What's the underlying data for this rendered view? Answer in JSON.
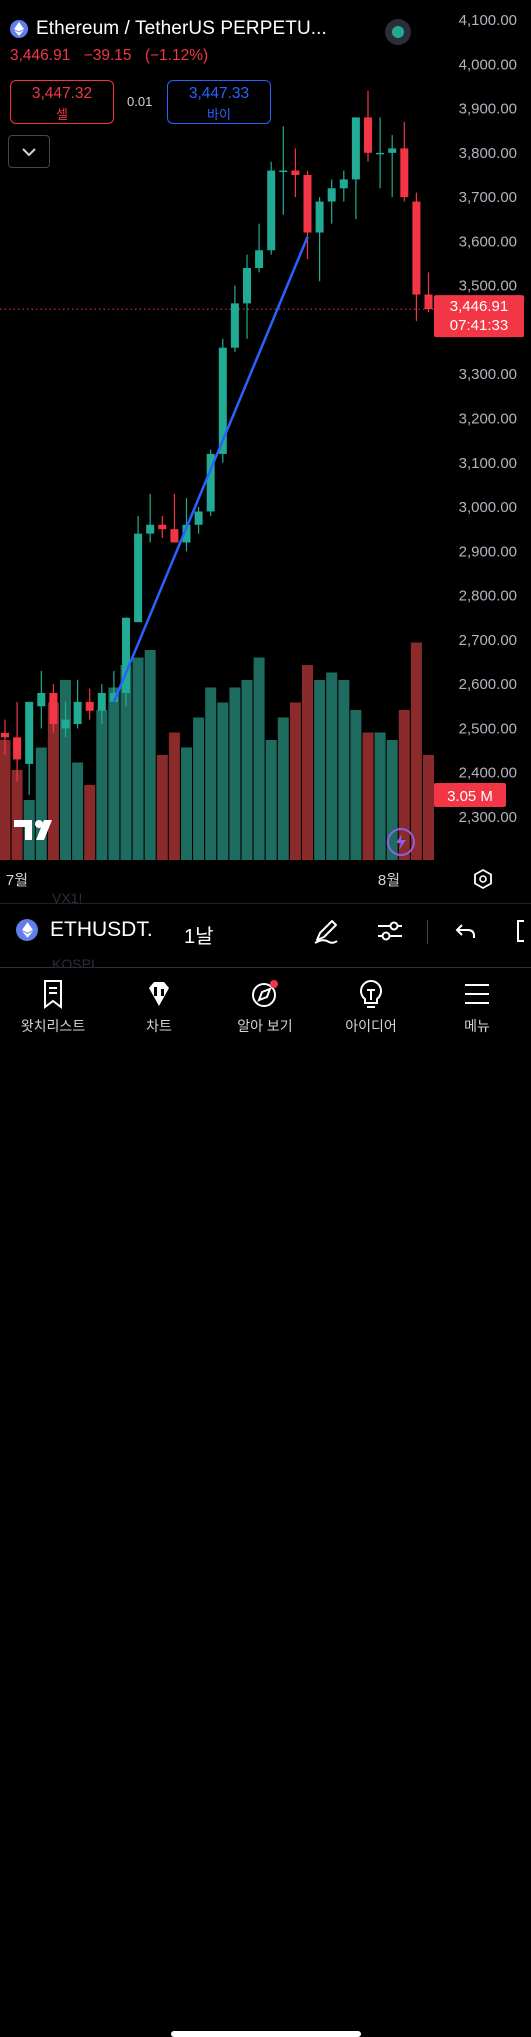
{
  "header": {
    "title": "Ethereum / TetherUS PERPETU...",
    "last_price": "3,446.91",
    "change": "−39.15",
    "change_pct": "(−1.12%)"
  },
  "order": {
    "sell_price": "3,447.32",
    "sell_label": "셀",
    "spread": "0.01",
    "buy_price": "3,447.33",
    "buy_label": "바이"
  },
  "colors": {
    "up": "#22ab94",
    "down": "#f23645",
    "vol_up": "#1e6b5f",
    "vol_down": "#8a2a2a",
    "trendline": "#2962ff",
    "background": "#000000"
  },
  "chart_data": {
    "type": "candlestick",
    "y_axis_labels": [
      "4,100.00",
      "4,000.00",
      "3,900.00",
      "3,800.00",
      "3,700.00",
      "3,600.00",
      "3,500.00",
      "3,400.00",
      "3,300.00",
      "3,200.00",
      "3,100.00",
      "3,000.00",
      "2,900.00",
      "2,800.00",
      "2,700.00",
      "2,600.00",
      "2,500.00",
      "2,400.00",
      "2,300.00"
    ],
    "y_range": [
      2220,
      4120
    ],
    "x_labels": [
      "7월",
      "8월"
    ],
    "current_price_label": "3,446.91",
    "countdown_label": "07:41:33",
    "current_price": 3446.91,
    "volume_label": "3.05 M",
    "candles": [
      {
        "o": 2490,
        "h": 2520,
        "l": 2440,
        "c": 2480
      },
      {
        "o": 2480,
        "h": 2560,
        "l": 2380,
        "c": 2430
      },
      {
        "o": 2420,
        "h": 2560,
        "l": 2350,
        "c": 2560
      },
      {
        "o": 2550,
        "h": 2630,
        "l": 2500,
        "c": 2580
      },
      {
        "o": 2580,
        "h": 2600,
        "l": 2490,
        "c": 2510
      },
      {
        "o": 2500,
        "h": 2560,
        "l": 2480,
        "c": 2520
      },
      {
        "o": 2510,
        "h": 2610,
        "l": 2500,
        "c": 2560
      },
      {
        "o": 2560,
        "h": 2590,
        "l": 2520,
        "c": 2540
      },
      {
        "o": 2540,
        "h": 2600,
        "l": 2510,
        "c": 2580
      },
      {
        "o": 2560,
        "h": 2630,
        "l": 2560,
        "c": 2580
      },
      {
        "o": 2580,
        "h": 2750,
        "l": 2550,
        "c": 2750
      },
      {
        "o": 2740,
        "h": 2980,
        "l": 2740,
        "c": 2940
      },
      {
        "o": 2940,
        "h": 3030,
        "l": 2920,
        "c": 2960
      },
      {
        "o": 2960,
        "h": 2980,
        "l": 2930,
        "c": 2950
      },
      {
        "o": 2950,
        "h": 3030,
        "l": 2920,
        "c": 2920
      },
      {
        "o": 2920,
        "h": 3020,
        "l": 2900,
        "c": 2960
      },
      {
        "o": 2960,
        "h": 3000,
        "l": 2940,
        "c": 2990
      },
      {
        "o": 2990,
        "h": 3130,
        "l": 2980,
        "c": 3120
      },
      {
        "o": 3120,
        "h": 3380,
        "l": 3100,
        "c": 3360
      },
      {
        "o": 3360,
        "h": 3500,
        "l": 3350,
        "c": 3460
      },
      {
        "o": 3460,
        "h": 3570,
        "l": 3380,
        "c": 3540
      },
      {
        "o": 3540,
        "h": 3640,
        "l": 3530,
        "c": 3580
      },
      {
        "o": 3580,
        "h": 3780,
        "l": 3570,
        "c": 3760
      },
      {
        "o": 3760,
        "h": 3860,
        "l": 3660,
        "c": 3760
      },
      {
        "o": 3760,
        "h": 3810,
        "l": 3700,
        "c": 3750
      },
      {
        "o": 3750,
        "h": 3760,
        "l": 3560,
        "c": 3620
      },
      {
        "o": 3620,
        "h": 3700,
        "l": 3510,
        "c": 3690
      },
      {
        "o": 3690,
        "h": 3740,
        "l": 3640,
        "c": 3720
      },
      {
        "o": 3720,
        "h": 3760,
        "l": 3690,
        "c": 3740
      },
      {
        "o": 3740,
        "h": 3880,
        "l": 3650,
        "c": 3880
      },
      {
        "o": 3880,
        "h": 3940,
        "l": 3780,
        "c": 3800
      },
      {
        "o": 3800,
        "h": 3880,
        "l": 3720,
        "c": 3800
      },
      {
        "o": 3800,
        "h": 3840,
        "l": 3700,
        "c": 3810
      },
      {
        "o": 3810,
        "h": 3870,
        "l": 3690,
        "c": 3700
      },
      {
        "o": 3690,
        "h": 3710,
        "l": 3420,
        "c": 3480
      },
      {
        "o": 3480,
        "h": 3530,
        "l": 3440,
        "c": 3447
      }
    ],
    "volumes": [
      160,
      120,
      80,
      150,
      210,
      240,
      130,
      100,
      200,
      230,
      260,
      270,
      280,
      140,
      170,
      150,
      190,
      230,
      210,
      230,
      240,
      270,
      160,
      190,
      210,
      260,
      240,
      250,
      240,
      200,
      170,
      170,
      160,
      200,
      290,
      140
    ],
    "trendline": {
      "from": {
        "candle": 9,
        "price": 2560
      },
      "to": {
        "candle": 25,
        "price": 3610
      }
    }
  },
  "toolbar": {
    "symbol": "ETHUSDT.",
    "timeframe": "1날",
    "ghost_top": "VX1!",
    "ghost_bottom": "KOSPI"
  },
  "tabs": [
    {
      "label": "왓치리스트",
      "icon": "watchlist-icon"
    },
    {
      "label": "차트",
      "icon": "chart-icon"
    },
    {
      "label": "알아 보기",
      "icon": "explore-icon"
    },
    {
      "label": "아이디어",
      "icon": "ideas-icon"
    },
    {
      "label": "메뉴",
      "icon": "menu-icon"
    }
  ]
}
